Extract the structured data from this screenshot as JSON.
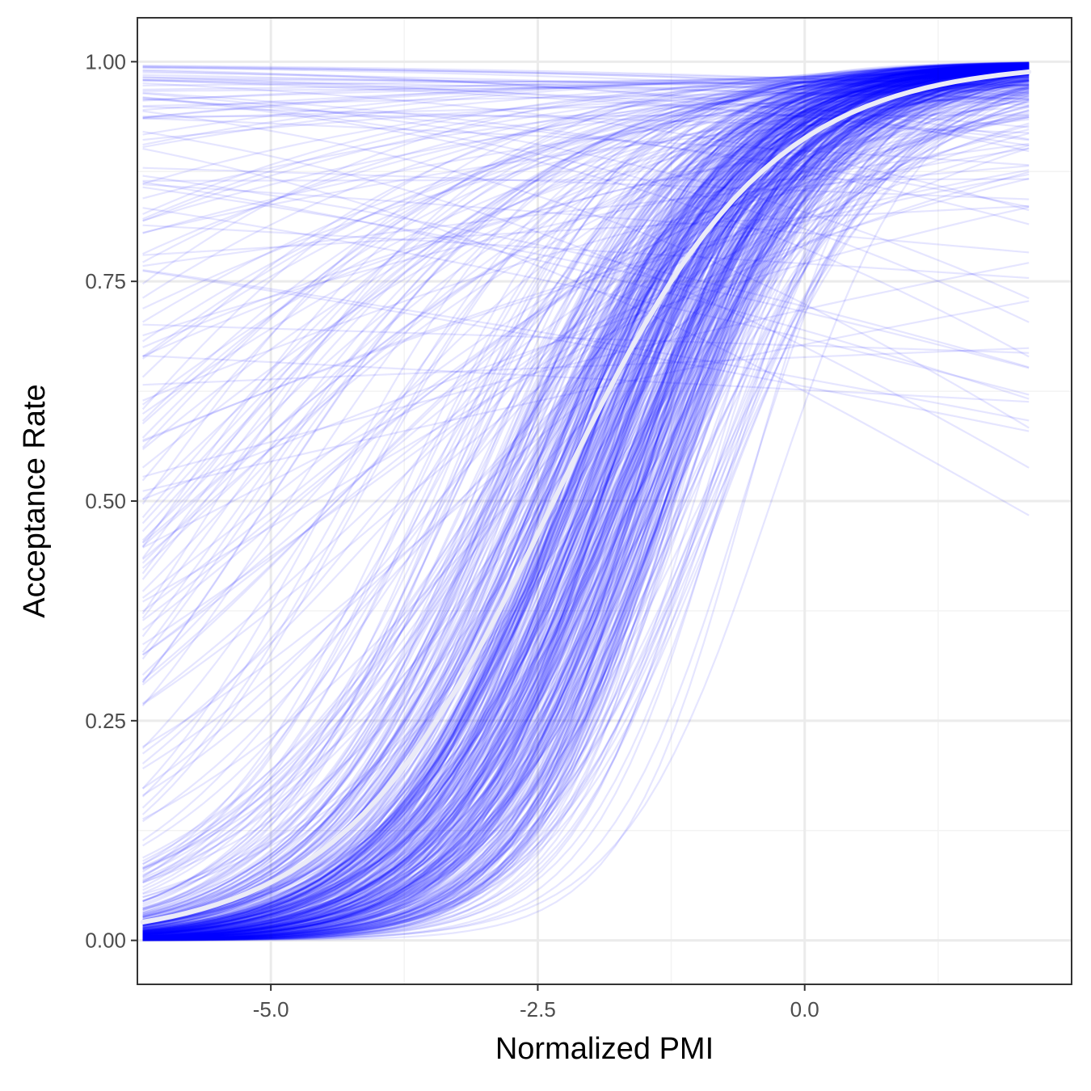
{
  "chart_data": {
    "type": "line",
    "title": "",
    "xlabel": "Normalized PMI",
    "ylabel": "Acceptance Rate",
    "xlim": [
      -6.25,
      2.5
    ],
    "ylim": [
      -0.05,
      1.05
    ],
    "x_domain": [
      -6.2,
      2.1
    ],
    "x_ticks": [
      -5.0,
      -2.5,
      0.0
    ],
    "x_tick_labels": [
      "-5.0",
      "-2.5",
      "0.0"
    ],
    "y_ticks": [
      0.0,
      0.25,
      0.5,
      0.75,
      1.0
    ],
    "y_tick_labels": [
      "0.00",
      "0.25",
      "0.50",
      "0.75",
      "1.00"
    ],
    "grid": true,
    "legend": "none",
    "series": [
      {
        "role": "pooled-fit",
        "model": "logistic",
        "intercept": 2.35,
        "slope": 1.0,
        "color": "#ebebf7"
      },
      {
        "role": "individual-fits",
        "model": "logistic",
        "count": 600,
        "color": "#0000ff",
        "opacity": 0.1,
        "intercept_range": [
          -1.5,
          6.5
        ],
        "slope_range": [
          -0.35,
          2.3
        ]
      }
    ]
  },
  "colors": {
    "background": "#ffffff",
    "panel_border": "#333333",
    "grid_major": "#ebebeb",
    "grid_minor": "#f3f3f3",
    "curve": "#0000ff",
    "mean_curve": "#ebebf7"
  }
}
